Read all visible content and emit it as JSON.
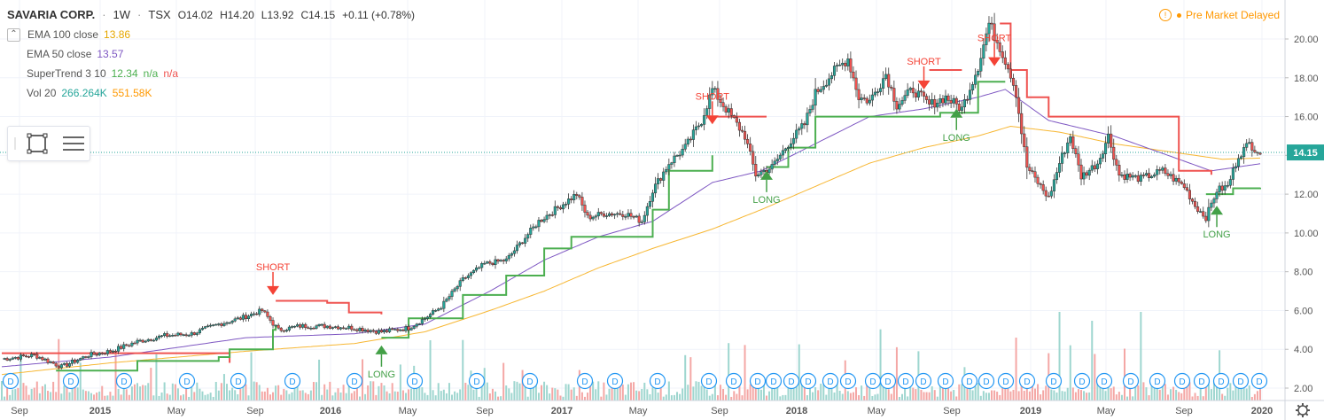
{
  "header": {
    "symbol": "SAVARIA CORP.",
    "interval": "1W",
    "exchange": "TSX",
    "open": "O14.02",
    "high": "H14.20",
    "low": "L13.92",
    "close": "C14.15",
    "change": "+0.11 (+0.78%)"
  },
  "status": {
    "text": "Pre Market  Delayed",
    "color": "#ff9800"
  },
  "indicators": [
    {
      "name": "EMA 100 close",
      "value": "13.86",
      "color": "#f7b733"
    },
    {
      "name": "EMA 50 close",
      "value": "13.57",
      "color": "#7e57c2"
    },
    {
      "name": "SuperTrend 3 10",
      "value": "12.34",
      "value2": "n/a",
      "value3": "n/a",
      "color": "#4caf50",
      "color3": "#ef5350"
    },
    {
      "name": "Vol 20",
      "value": "266.264K",
      "value2": "551.58K",
      "color": "#26a69a",
      "color2": "#ff9800"
    }
  ],
  "price_label": "14.15",
  "colors": {
    "up": "#26a69a",
    "down": "#ef5350",
    "grid": "#f0f3fa",
    "axis_text": "#555555"
  },
  "chart_data": {
    "type": "candlestick",
    "y_axis": {
      "min": 2.0,
      "max": 21.0,
      "ticks": [
        "2.00",
        "4.00",
        "6.00",
        "8.00",
        "10.00",
        "12.00",
        "14.00",
        "16.00",
        "18.00",
        "20.00"
      ]
    },
    "x_axis": {
      "ticks": [
        "Sep",
        "2015",
        "May",
        "Sep",
        "2016",
        "May",
        "Sep",
        "2017",
        "May",
        "Sep",
        "2018",
        "May",
        "Sep",
        "2019",
        "May",
        "Sep",
        "2020"
      ]
    },
    "close_path": [
      [
        0,
        3.5
      ],
      [
        12,
        3.7
      ],
      [
        22,
        3.1
      ],
      [
        32,
        3.7
      ],
      [
        40,
        3.9
      ],
      [
        50,
        4.4
      ],
      [
        60,
        4.7
      ],
      [
        70,
        4.8
      ],
      [
        80,
        5.3
      ],
      [
        88,
        5.6
      ],
      [
        96,
        6.0
      ],
      [
        102,
        5.0
      ],
      [
        110,
        5.2
      ],
      [
        120,
        5.2
      ],
      [
        130,
        5.1
      ],
      [
        140,
        4.9
      ],
      [
        150,
        5.1
      ],
      [
        156,
        5.6
      ],
      [
        162,
        6.2
      ],
      [
        170,
        7.6
      ],
      [
        178,
        8.4
      ],
      [
        186,
        8.6
      ],
      [
        192,
        9.6
      ],
      [
        198,
        10.6
      ],
      [
        204,
        11.2
      ],
      [
        212,
        12.0
      ],
      [
        216,
        10.8
      ],
      [
        222,
        11.0
      ],
      [
        230,
        11.0
      ],
      [
        236,
        10.6
      ],
      [
        240,
        12.2
      ],
      [
        246,
        13.6
      ],
      [
        252,
        14.4
      ],
      [
        258,
        15.8
      ],
      [
        262,
        17.4
      ],
      [
        268,
        16.2
      ],
      [
        274,
        15.0
      ],
      [
        278,
        13.0
      ],
      [
        284,
        13.4
      ],
      [
        290,
        14.6
      ],
      [
        296,
        15.6
      ],
      [
        300,
        17.2
      ],
      [
        306,
        18.2
      ],
      [
        312,
        19.0
      ],
      [
        316,
        17.0
      ],
      [
        320,
        16.8
      ],
      [
        326,
        18.2
      ],
      [
        330,
        16.6
      ],
      [
        336,
        17.4
      ],
      [
        342,
        16.6
      ],
      [
        348,
        17.0
      ],
      [
        354,
        16.4
      ],
      [
        360,
        18.6
      ],
      [
        364,
        20.8
      ],
      [
        368,
        19.6
      ],
      [
        372,
        18.2
      ],
      [
        374,
        17.2
      ],
      [
        376,
        15.2
      ],
      [
        378,
        13.4
      ],
      [
        382,
        12.6
      ],
      [
        386,
        11.8
      ],
      [
        390,
        13.6
      ],
      [
        394,
        15.0
      ],
      [
        398,
        12.9
      ],
      [
        404,
        13.6
      ],
      [
        408,
        15.0
      ],
      [
        412,
        13.0
      ],
      [
        420,
        12.8
      ],
      [
        428,
        13.2
      ],
      [
        436,
        12.4
      ],
      [
        440,
        11.4
      ],
      [
        444,
        10.8
      ],
      [
        448,
        12.2
      ],
      [
        452,
        12.4
      ],
      [
        456,
        14.0
      ],
      [
        460,
        14.6
      ],
      [
        464,
        14.15
      ]
    ],
    "ema100_path": [
      [
        0,
        2.7
      ],
      [
        40,
        3.3
      ],
      [
        90,
        3.9
      ],
      [
        130,
        4.3
      ],
      [
        156,
        4.9
      ],
      [
        180,
        6.0
      ],
      [
        200,
        7.0
      ],
      [
        220,
        8.2
      ],
      [
        240,
        9.2
      ],
      [
        262,
        10.2
      ],
      [
        280,
        11.2
      ],
      [
        300,
        12.4
      ],
      [
        320,
        13.6
      ],
      [
        340,
        14.4
      ],
      [
        360,
        15.0
      ],
      [
        372,
        15.5
      ],
      [
        390,
        15.2
      ],
      [
        410,
        14.6
      ],
      [
        430,
        14.2
      ],
      [
        450,
        13.8
      ],
      [
        464,
        13.86
      ]
    ],
    "ema50_path": [
      [
        0,
        3.1
      ],
      [
        40,
        3.6
      ],
      [
        90,
        4.6
      ],
      [
        130,
        4.8
      ],
      [
        156,
        5.3
      ],
      [
        180,
        7.0
      ],
      [
        200,
        8.6
      ],
      [
        220,
        9.8
      ],
      [
        240,
        10.6
      ],
      [
        262,
        12.6
      ],
      [
        280,
        13.2
      ],
      [
        300,
        14.6
      ],
      [
        320,
        16.0
      ],
      [
        340,
        16.4
      ],
      [
        360,
        17.0
      ],
      [
        370,
        17.4
      ],
      [
        386,
        15.8
      ],
      [
        410,
        15.0
      ],
      [
        430,
        14.0
      ],
      [
        446,
        13.2
      ],
      [
        464,
        13.57
      ]
    ],
    "supertrend_segments": [
      {
        "dir": "down",
        "path": [
          [
            0,
            3.8
          ],
          [
            50,
            3.8
          ],
          [
            80,
            3.8
          ],
          [
            84,
            3.3
          ]
        ]
      },
      {
        "dir": "up",
        "path": [
          [
            20,
            2.9
          ],
          [
            50,
            3.4
          ],
          [
            80,
            3.6
          ],
          [
            84,
            4.0
          ],
          [
            100,
            5.0
          ],
          [
            101,
            5.2
          ]
        ]
      },
      {
        "dir": "down",
        "path": [
          [
            101,
            6.5
          ],
          [
            120,
            6.4
          ],
          [
            128,
            5.9
          ],
          [
            140,
            5.8
          ]
        ]
      },
      {
        "dir": "up",
        "path": [
          [
            140,
            4.6
          ],
          [
            150,
            5.6
          ],
          [
            170,
            6.8
          ],
          [
            186,
            7.8
          ],
          [
            200,
            9.2
          ],
          [
            210,
            9.8
          ],
          [
            234,
            9.8
          ],
          [
            240,
            11.2
          ],
          [
            246,
            13.2
          ],
          [
            262,
            14.0
          ]
        ]
      },
      {
        "dir": "down",
        "path": [
          [
            262,
            16.0
          ],
          [
            282,
            16.0
          ]
        ]
      },
      {
        "dir": "up",
        "path": [
          [
            282,
            13.4
          ],
          [
            290,
            14.4
          ],
          [
            300,
            16.0
          ],
          [
            340,
            16.0
          ],
          [
            346,
            16.2
          ],
          [
            360,
            17.8
          ],
          [
            370,
            17.8
          ]
        ]
      },
      {
        "dir": "down",
        "path": [
          [
            342,
            18.4
          ],
          [
            354,
            18.4
          ]
        ]
      },
      {
        "dir": "down",
        "path": [
          [
            368,
            20.8
          ],
          [
            372,
            18.4
          ],
          [
            378,
            17.0
          ],
          [
            386,
            16.0
          ],
          [
            426,
            16.0
          ],
          [
            434,
            13.2
          ],
          [
            446,
            13.0
          ]
        ]
      },
      {
        "dir": "up",
        "path": [
          [
            444,
            12.0
          ],
          [
            454,
            12.3
          ],
          [
            464,
            12.34
          ]
        ]
      }
    ],
    "signals": [
      {
        "type": "SHORT",
        "x": 100,
        "price": 6.8
      },
      {
        "type": "LONG",
        "x": 140,
        "price": 4.2
      },
      {
        "type": "SHORT",
        "x": 262,
        "price": 15.6
      },
      {
        "type": "LONG",
        "x": 282,
        "price": 13.2
      },
      {
        "type": "SHORT",
        "x": 340,
        "price": 17.4
      },
      {
        "type": "LONG",
        "x": 352,
        "price": 16.4
      },
      {
        "type": "SHORT",
        "x": 366,
        "price": 18.6
      },
      {
        "type": "LONG",
        "x": 448,
        "price": 11.4
      }
    ],
    "dividend_markers": 34
  }
}
